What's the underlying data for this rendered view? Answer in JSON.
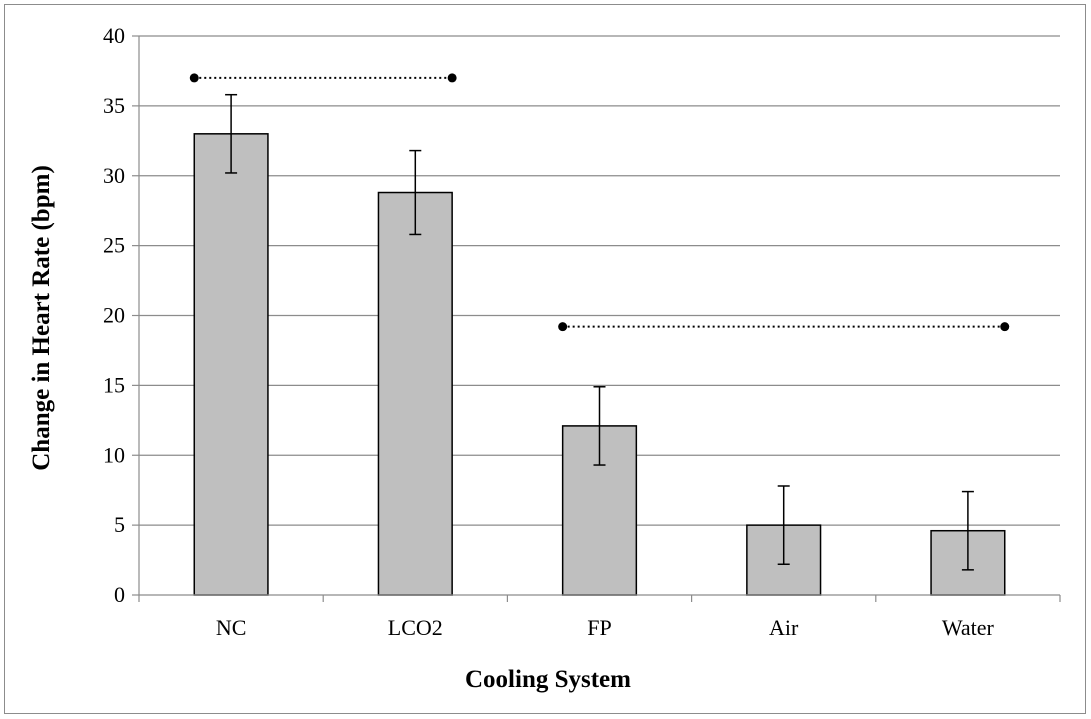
{
  "chart_data": {
    "type": "bar",
    "title": "",
    "xlabel": "Cooling System",
    "ylabel": "Change in Heart Rate (bpm)",
    "categories": [
      "NC",
      "LCO2",
      "FP",
      "Air",
      "Water"
    ],
    "values": [
      33.0,
      28.8,
      12.1,
      5.0,
      4.6
    ],
    "error": [
      2.8,
      3.0,
      2.8,
      2.8,
      2.8
    ],
    "ylim": [
      0,
      40
    ],
    "yticks": [
      0,
      5,
      10,
      15,
      20,
      25,
      30,
      35,
      40
    ],
    "grid": true,
    "legend": "none",
    "bar_color": "#bfbfbf",
    "significance_brackets": [
      {
        "from": "NC",
        "to": "LCO2",
        "y": 37.0
      },
      {
        "from": "FP",
        "to": "Water",
        "y": 19.2
      }
    ]
  }
}
